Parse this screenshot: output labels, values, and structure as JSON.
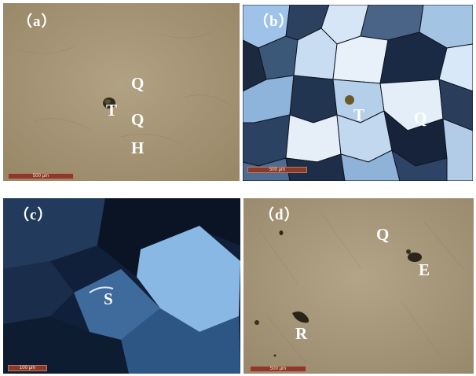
{
  "panels": [
    {
      "label": "（a）",
      "scale": "500 μm",
      "minerals": [
        "Q",
        "T",
        "Q",
        "H"
      ]
    },
    {
      "label": "（b）",
      "scale": "500 μm",
      "minerals": [
        "T",
        "Q"
      ]
    },
    {
      "label": "（c）",
      "scale": "100 μm",
      "minerals": [
        "S"
      ]
    },
    {
      "label": "（d）",
      "scale": "500 μm",
      "minerals": [
        "Q",
        "E",
        "R"
      ]
    }
  ],
  "colors": {
    "plane_light_bg": "#a8987a",
    "scale_bar": "#8a3a2a",
    "label": "#ffffff"
  }
}
